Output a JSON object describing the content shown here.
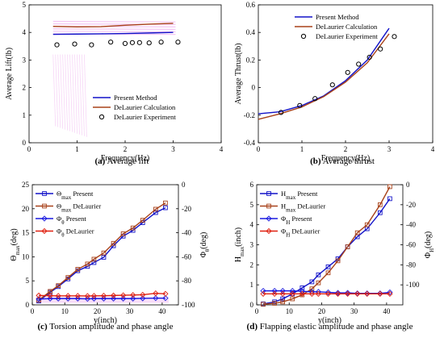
{
  "colors": {
    "present": "#1212c8",
    "delaurier": "#a8421a",
    "experiment": "#000000",
    "phase_present": "#1a1ae0",
    "phase_delaurier": "#e02010",
    "band": "#e88ce8"
  },
  "chart_data": [
    {
      "type": "line",
      "panel_label": "(a)",
      "title": "Average lift",
      "xlabel": "Frequency(Hz)",
      "ylabel": "Average Lift(lb)",
      "xlim": [
        0,
        4
      ],
      "ylim": [
        0,
        5
      ],
      "xticks": [
        "0",
        "1",
        "2",
        "3",
        "4"
      ],
      "yticks": [
        "0",
        "1",
        "2",
        "3",
        "4",
        "5"
      ],
      "legend": "bottom-right",
      "series": [
        {
          "name": "Present Method",
          "style": "line",
          "x": [
            0.5,
            1.0,
            1.5,
            2.0,
            2.5,
            3.0
          ],
          "y": [
            3.93,
            3.94,
            3.95,
            3.96,
            3.98,
            4.0
          ]
        },
        {
          "name": "DeLaurier Calculation",
          "style": "line",
          "x": [
            0.5,
            1.0,
            1.5,
            2.0,
            2.5,
            3.0
          ],
          "y": [
            4.22,
            4.2,
            4.21,
            4.26,
            4.3,
            4.33
          ]
        },
        {
          "name": "DeLaurier Experiment",
          "style": "marker",
          "x": [
            0.58,
            0.95,
            1.3,
            1.7,
            2.0,
            2.15,
            2.3,
            2.5,
            2.75,
            3.1
          ],
          "y": [
            3.55,
            3.58,
            3.55,
            3.65,
            3.6,
            3.63,
            3.63,
            3.62,
            3.65,
            3.65
          ]
        }
      ]
    },
    {
      "type": "line",
      "panel_label": "(b)",
      "title": "Average thrust",
      "xlabel": "Frequency(Hz)",
      "ylabel": "Average Thrust(lb)",
      "xlim": [
        0,
        4
      ],
      "ylim": [
        -0.4,
        0.6
      ],
      "xticks": [
        "0",
        "1",
        "2",
        "3",
        "4"
      ],
      "yticks": [
        "-0.4",
        "-0.2",
        "0",
        "0.2",
        "0.4",
        "0.6"
      ],
      "legend": "top-right",
      "series": [
        {
          "name": "Present Method",
          "style": "line",
          "x": [
            0,
            0.5,
            1.0,
            1.5,
            2.0,
            2.5,
            3.0
          ],
          "y": [
            -0.19,
            -0.175,
            -0.13,
            -0.06,
            0.05,
            0.2,
            0.43
          ]
        },
        {
          "name": "DeLaurier Calculation",
          "style": "line",
          "x": [
            0,
            0.5,
            1.0,
            1.5,
            2.0,
            2.5,
            3.0
          ],
          "y": [
            -0.23,
            -0.19,
            -0.14,
            -0.065,
            0.04,
            0.18,
            0.39
          ]
        },
        {
          "name": "DeLaurier Experiment",
          "style": "marker",
          "x": [
            0.52,
            0.95,
            1.3,
            1.7,
            2.05,
            2.3,
            2.55,
            2.8,
            3.12
          ],
          "y": [
            -0.18,
            -0.13,
            -0.08,
            0.02,
            0.11,
            0.17,
            0.22,
            0.28,
            0.37
          ]
        }
      ]
    },
    {
      "type": "line",
      "panel_label": "(c)",
      "title": "Torsion amplitude and phase angle",
      "xlabel": "y(inch)",
      "ylabel": "Θmax(deg)",
      "ylabel_right": "Φθ(deg)",
      "xlim": [
        0,
        45
      ],
      "ylim": [
        0,
        25
      ],
      "ylim_right": [
        -100,
        0
      ],
      "xticks": [
        "0",
        "10",
        "20",
        "30",
        "40"
      ],
      "yticks": [
        "0",
        "5",
        "10",
        "15",
        "20",
        "25"
      ],
      "yticks_right": [
        "-100",
        "-80",
        "-60",
        "-40",
        "-20",
        "0"
      ],
      "legend": "top-left",
      "series": [
        {
          "name": "Θmax Present",
          "axis": "left",
          "marker": "square",
          "x": [
            2,
            5.5,
            8,
            11,
            14,
            17,
            19,
            22,
            25,
            28,
            31,
            34,
            38,
            41
          ],
          "y": [
            0.8,
            2.6,
            3.8,
            5.4,
            7.1,
            8.0,
            8.8,
            9.9,
            12.3,
            14.3,
            15.5,
            17.1,
            19.2,
            20.2
          ]
        },
        {
          "name": "Θmax DeLaurier",
          "axis": "left",
          "marker": "square",
          "x": [
            2,
            5.5,
            8,
            11,
            14,
            17,
            19,
            22,
            25,
            28,
            31,
            34,
            38,
            41
          ],
          "y": [
            1.0,
            2.8,
            4.0,
            5.7,
            7.4,
            8.5,
            9.5,
            10.8,
            12.8,
            14.8,
            16.0,
            17.6,
            19.9,
            21.2
          ]
        },
        {
          "name": "Φθ Present",
          "axis": "right",
          "marker": "diamond",
          "x": [
            2,
            5.5,
            8,
            11,
            14,
            17,
            19,
            22,
            25,
            28,
            31,
            34,
            38,
            41
          ],
          "y": [
            -95.2,
            -94.8,
            -94.8,
            -94.8,
            -94.8,
            -95,
            -94.8,
            -94.8,
            -94.8,
            -94.8,
            -94.8,
            -94.6,
            -94.4,
            -94.4
          ]
        },
        {
          "name": "Φθ DeLaurier",
          "axis": "right",
          "marker": "diamond",
          "x": [
            2,
            5.5,
            8,
            11,
            14,
            17,
            19,
            22,
            25,
            28,
            31,
            34,
            38,
            41
          ],
          "y": [
            -92.2,
            -92.4,
            -92.5,
            -92.5,
            -92.5,
            -92.6,
            -92.5,
            -92.4,
            -92.2,
            -92,
            -91.8,
            -91.6,
            -90.4,
            -90.8
          ]
        }
      ]
    },
    {
      "type": "line",
      "panel_label": "(d)",
      "title": "Flapping elastic amplitude and phase angle",
      "xlabel": "y(inch)",
      "ylabel": "Hmax(inch)",
      "ylabel_right": "ΦH(deg)",
      "xlim": [
        0,
        45
      ],
      "ylim": [
        0,
        6
      ],
      "ylim_right": [
        -120,
        0
      ],
      "xticks": [
        "0",
        "10",
        "20",
        "30",
        "40"
      ],
      "yticks": [
        "0",
        "1",
        "2",
        "3",
        "4",
        "5",
        "6"
      ],
      "yticks_right": [
        "-100",
        "-80",
        "-60",
        "-40",
        "-20",
        "0"
      ],
      "legend": "top-left",
      "series": [
        {
          "name": "Hmax Present",
          "axis": "left",
          "marker": "square",
          "x": [
            2,
            5.5,
            8,
            11,
            14,
            17,
            19,
            22,
            25,
            28,
            31,
            34,
            38,
            41
          ],
          "y": [
            0.05,
            0.15,
            0.3,
            0.55,
            0.85,
            1.15,
            1.5,
            1.9,
            2.3,
            2.9,
            3.4,
            3.8,
            4.6,
            5.3
          ]
        },
        {
          "name": "Hmax DeLaurier",
          "axis": "left",
          "marker": "square",
          "x": [
            2,
            5.5,
            8,
            11,
            14,
            17,
            19,
            22,
            25,
            28,
            31,
            34,
            38,
            41
          ],
          "y": [
            0.03,
            0.08,
            0.15,
            0.3,
            0.5,
            0.8,
            1.1,
            1.6,
            2.2,
            2.9,
            3.6,
            4.0,
            5.0,
            5.9
          ]
        },
        {
          "name": "ΦH Present",
          "axis": "right",
          "marker": "diamond",
          "x": [
            2,
            5.5,
            8,
            11,
            14,
            17,
            19,
            22,
            25,
            28,
            31,
            34,
            38,
            41
          ],
          "y": [
            -106,
            -106,
            -106,
            -106,
            -106.5,
            -107,
            -107,
            -107.5,
            -108,
            -108,
            -108.5,
            -108.5,
            -108.5,
            -107.5
          ]
        },
        {
          "name": "ΦH DeLaurier",
          "axis": "right",
          "marker": "diamond",
          "x": [
            2,
            5.5,
            8,
            11,
            14,
            17,
            19,
            22,
            25,
            28,
            31,
            34,
            38,
            41
          ],
          "y": [
            -109,
            -109,
            -109,
            -109,
            -109,
            -109,
            -109,
            -109,
            -109,
            -109,
            -109,
            -109,
            -109,
            -109
          ]
        }
      ]
    }
  ]
}
